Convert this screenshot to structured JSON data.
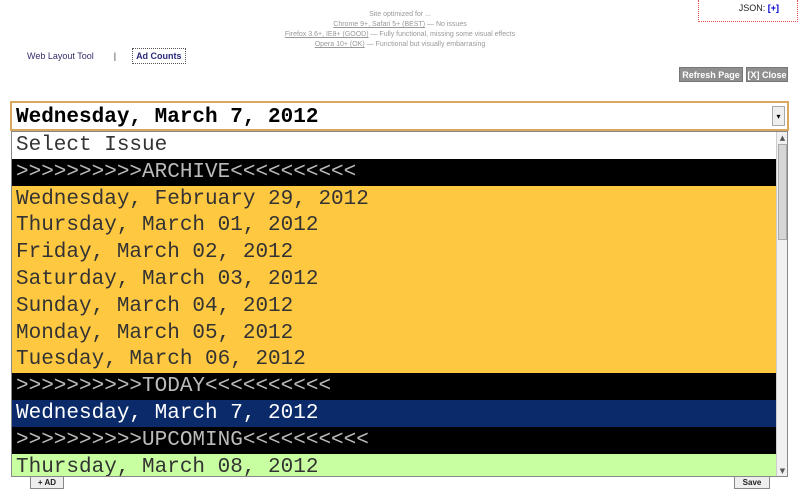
{
  "header": {
    "json_label": "JSON:",
    "json_toggle": "[+]",
    "notes": {
      "line1": "Site optimized for ...",
      "line2_link": "Chrome 9+, Safari 5+ (BEST)",
      "line2_rest": " — No issues",
      "line3_link": "Firefox 3.6+, IE8+ (GOOD)",
      "line3_rest": " — Fully functional, missing some visual effects",
      "line4_link": "Opera 10+ (OK)",
      "line4_rest": " — Functional but visually embarrasing"
    }
  },
  "nav": {
    "web_layout_tool": "Web Layout Tool",
    "separator": "|",
    "ad_counts": "Ad Counts"
  },
  "toolbar": {
    "refresh_label": "Refresh Page",
    "close_label": "[X] Close"
  },
  "issue_select": {
    "selected_value": "Wednesday, March 7, 2012",
    "options": [
      {
        "label": "Select Issue",
        "style": "white"
      },
      {
        "label": ">>>>>>>>>>ARCHIVE<<<<<<<<<<",
        "style": "black"
      },
      {
        "label": "Wednesday, February 29, 2012",
        "style": "gold"
      },
      {
        "label": "Thursday, March 01, 2012",
        "style": "gold"
      },
      {
        "label": "Friday, March 02, 2012",
        "style": "gold"
      },
      {
        "label": "Saturday, March 03, 2012",
        "style": "gold"
      },
      {
        "label": "Sunday, March 04, 2012",
        "style": "gold"
      },
      {
        "label": "Monday, March 05, 2012",
        "style": "gold"
      },
      {
        "label": "Tuesday, March 06, 2012",
        "style": "gold"
      },
      {
        "label": ">>>>>>>>>>TODAY<<<<<<<<<<",
        "style": "black"
      },
      {
        "label": "Wednesday, March 7, 2012",
        "style": "selected"
      },
      {
        "label": ">>>>>>>>>>UPCOMING<<<<<<<<<<",
        "style": "black"
      },
      {
        "label": "Thursday, March 08, 2012",
        "style": "green"
      }
    ]
  },
  "footer": {
    "add_ad_label": "+ AD",
    "save_label": "Save"
  },
  "icons": {
    "dropdown_arrow": "▾",
    "scroll_up": "▲",
    "scroll_down": "▼"
  }
}
